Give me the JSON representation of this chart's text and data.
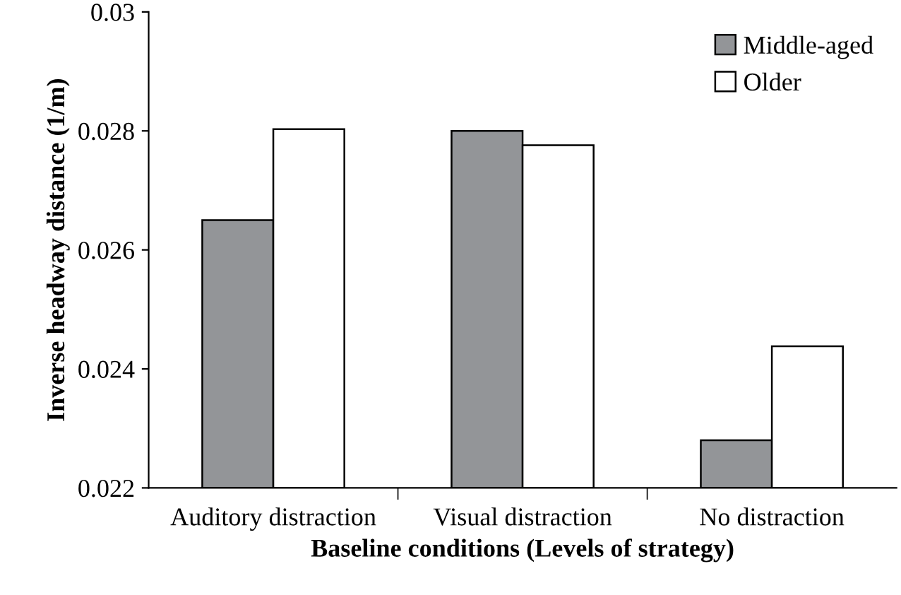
{
  "chart_data": {
    "type": "bar",
    "xlabel": "Baseline conditions (Levels of strategy)",
    "ylabel": "Inverse headway distance (1/m)",
    "categories": [
      "Auditory distraction",
      "Visual distraction",
      "No distraction"
    ],
    "series": [
      {
        "name": "Middle-aged",
        "color": "#939598",
        "values": [
          0.0265,
          0.028,
          0.0228
        ]
      },
      {
        "name": "Older",
        "color": "#ffffff",
        "values": [
          0.02803,
          0.02776,
          0.02438
        ]
      }
    ],
    "ylim": [
      0.022,
      0.03
    ],
    "yticks": [
      0.022,
      0.024,
      0.026,
      0.028,
      0.03
    ],
    "grid": false,
    "legend": "top right"
  }
}
